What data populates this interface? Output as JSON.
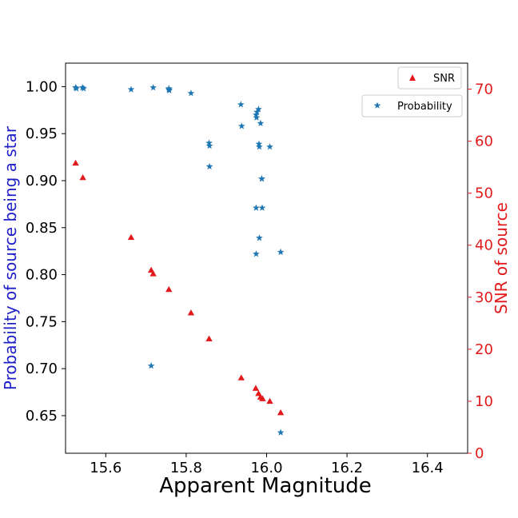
{
  "chart_data": {
    "type": "scatter",
    "xlabel": "Apparent Magnitude",
    "ylabel_left": "Probability of source being a star",
    "ylabel_right": "SNR of source",
    "xlim": [
      15.5,
      16.5
    ],
    "ylim_left": [
      0.61,
      1.025
    ],
    "ylim_right": [
      0,
      75
    ],
    "x_ticks": [
      15.6,
      15.8,
      16.0,
      16.2,
      16.4
    ],
    "x_tick_labels": [
      "15.6",
      "15.8",
      "16.0",
      "16.2",
      "16.4"
    ],
    "y_left_ticks": [
      0.65,
      0.7,
      0.75,
      0.8,
      0.85,
      0.9,
      0.95,
      1.0
    ],
    "y_left_tick_labels": [
      "0.65",
      "0.70",
      "0.75",
      "0.80",
      "0.85",
      "0.90",
      "0.95",
      "1.00"
    ],
    "y_right_ticks": [
      0,
      10,
      20,
      30,
      40,
      50,
      60,
      70
    ],
    "y_right_tick_labels": [
      "0",
      "10",
      "20",
      "30",
      "40",
      "50",
      "60",
      "70"
    ],
    "colors": {
      "probability": "#1f77b4",
      "snr": "#e31a1c",
      "left_label": "#1f1fc8",
      "right_axis": "#e31a1c"
    },
    "legend": {
      "snr_label": "SNR",
      "probability_label": "Probability",
      "placement": "top-right"
    },
    "series": [
      {
        "name": "SNR",
        "axis": "right",
        "marker": "triangle",
        "x": [
          15.525,
          15.543,
          15.663,
          15.713,
          15.718,
          15.757,
          15.812,
          15.857,
          15.937,
          15.973,
          15.98,
          15.985,
          15.99,
          16.008,
          16.035
        ],
        "y": [
          55.8,
          53.0,
          41.5,
          35.2,
          34.5,
          31.5,
          27.0,
          22.0,
          14.5,
          12.5,
          11.5,
          10.8,
          10.5,
          10.0,
          7.8
        ]
      },
      {
        "name": "Probability",
        "axis": "left",
        "marker": "star",
        "x": [
          15.525,
          15.527,
          15.542,
          15.545,
          15.663,
          15.718,
          15.757,
          15.758,
          15.812,
          15.857,
          15.858,
          15.858,
          15.936,
          15.938,
          15.974,
          15.975,
          15.98,
          15.981,
          15.982,
          15.985,
          15.988,
          15.989,
          16.008,
          15.974,
          15.988,
          15.982,
          15.974,
          16.035,
          15.713,
          16.035,
          15.757,
          15.976
        ],
        "y": [
          0.999,
          0.998,
          0.999,
          0.998,
          0.997,
          0.999,
          0.998,
          0.996,
          0.993,
          0.94,
          0.937,
          0.915,
          0.981,
          0.958,
          0.97,
          0.967,
          0.976,
          0.939,
          0.936,
          0.961,
          0.902,
          0.871,
          0.936,
          0.871,
          0.902,
          0.839,
          0.822,
          0.824,
          0.703,
          0.632,
          0.997,
          0.973
        ]
      }
    ]
  }
}
